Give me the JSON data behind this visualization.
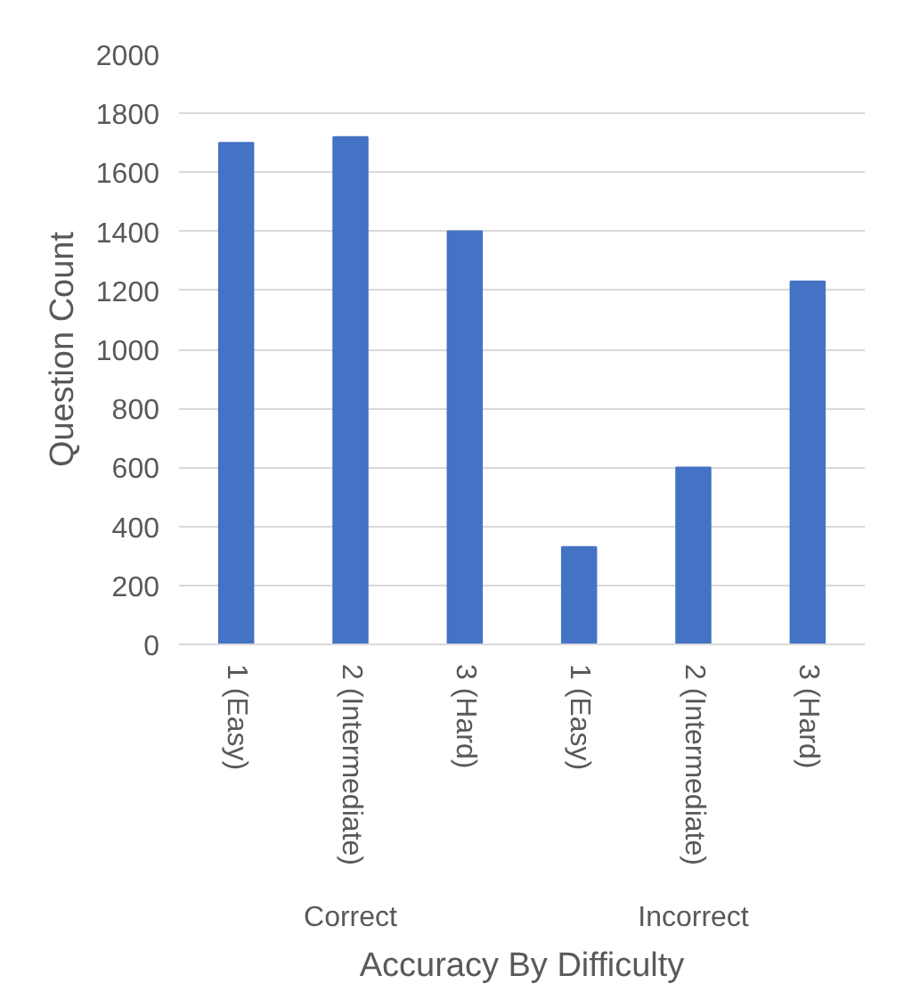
{
  "chart_data": {
    "type": "bar",
    "xlabel": "Accuracy By Difficulty",
    "ylabel": "Question Count",
    "categories": [
      "1 (Easy)",
      "2 (Intermediate)",
      "3 (Hard)",
      "1 (Easy)",
      "2 (Intermediate)",
      "3 (Hard)"
    ],
    "values": [
      1700,
      1720,
      1400,
      330,
      600,
      1230
    ],
    "color": "#4472c4",
    "annotations": [
      "Correct",
      "Incorrect"
    ],
    "ylim": [
      0,
      2000
    ],
    "yticks": [
      0,
      200,
      400,
      600,
      800,
      1000,
      1200,
      1400,
      1600,
      1800,
      2000
    ],
    "grid": "y"
  }
}
